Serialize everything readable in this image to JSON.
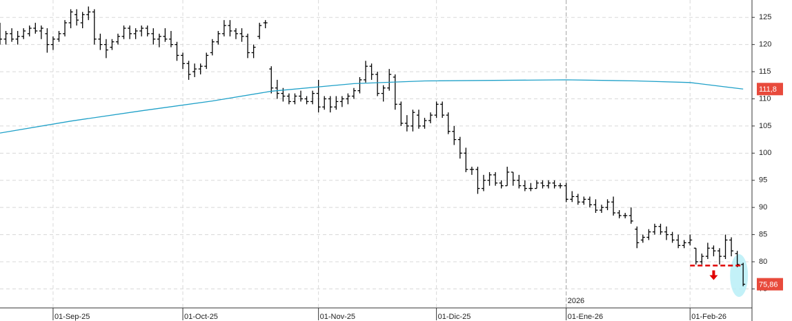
{
  "chart_data": {
    "type": "ohlc",
    "ohlc": {
      "color": "#000000",
      "close_label": "75,86",
      "open": [
        122,
        121,
        122,
        121,
        121.5,
        122,
        123,
        122.5,
        122,
        120,
        121,
        122,
        124,
        125.5,
        124,
        125.5,
        126,
        121,
        120,
        119.5,
        120.5,
        121.5,
        123,
        122,
        122.5,
        123,
        122,
        121,
        121.5,
        121,
        120,
        118,
        116.5,
        115,
        115.5,
        116,
        118.5,
        120.5,
        122,
        123.5,
        122.5,
        122,
        121.5,
        118.5,
        121.5,
        124,
        115.5,
        112,
        111,
        110.5,
        109.5,
        110.5,
        110,
        109.5,
        111,
        108.5,
        110,
        108.5,
        109.5,
        110,
        110.5,
        111.5,
        113.5,
        116,
        114.5,
        111,
        112,
        114,
        109,
        105.5,
        105,
        107,
        105,
        106,
        107,
        109,
        107,
        104,
        102.5,
        100,
        97,
        97,
        93.5,
        95,
        96,
        94.5,
        94,
        96.5,
        95,
        94,
        93.5,
        93.5,
        94.5,
        94,
        94.5,
        94,
        94,
        91.5,
        92,
        91,
        91.5,
        90.5,
        89.5,
        90,
        91,
        89,
        88.5,
        88.5,
        86,
        84,
        84.5,
        85.5,
        86.5,
        85.5,
        85,
        84,
        83,
        83.5,
        82.5,
        80,
        81,
        82.5,
        82,
        81,
        84,
        81.5,
        79.5
      ],
      "high": [
        124,
        122.5,
        123,
        122.5,
        123,
        123.5,
        124,
        123.5,
        123,
        121.5,
        122.5,
        124.5,
        126.5,
        126.5,
        126,
        127,
        126.5,
        122,
        121,
        121,
        122,
        123.5,
        123.5,
        123,
        123.5,
        123.5,
        123,
        122,
        123,
        122.5,
        120.5,
        118.5,
        117,
        116.5,
        116.5,
        118.5,
        121,
        122.5,
        124.5,
        124.5,
        123,
        123,
        122,
        120,
        124,
        124.5,
        116,
        113.5,
        112,
        111,
        111,
        111.5,
        110.5,
        111.5,
        113.5,
        110.5,
        110.5,
        110.5,
        110.5,
        111,
        112,
        114,
        117,
        116.5,
        115,
        112.5,
        115.5,
        114.5,
        109.5,
        107,
        108,
        108,
        106.5,
        107.5,
        109.5,
        109.5,
        107.5,
        105,
        103,
        101,
        97.5,
        97.5,
        96,
        96.5,
        96.5,
        95,
        97.5,
        96.5,
        96,
        95,
        94.5,
        95,
        95,
        95,
        95,
        94.5,
        94.5,
        93,
        92.5,
        92,
        92,
        91.5,
        90.5,
        91.5,
        92,
        89.5,
        89,
        90,
        86.5,
        85,
        86,
        87,
        87,
        86.5,
        85.5,
        85,
        84,
        85,
        82.5,
        81.5,
        83.5,
        83,
        82.5,
        85,
        84.5,
        82,
        79.8
      ],
      "low": [
        120,
        120,
        120.5,
        120,
        121,
        121.5,
        122,
        121,
        118.5,
        119,
        120.5,
        121.5,
        123,
        123.5,
        123,
        124.5,
        120,
        119,
        117.5,
        119,
        120,
        121,
        121,
        121,
        121.5,
        121.5,
        120,
        119.5,
        120.5,
        119.5,
        117,
        115.5,
        113.5,
        114,
        114.5,
        115.5,
        118,
        120,
        121.5,
        121.5,
        121,
        120.5,
        117.5,
        117.5,
        121,
        123,
        111,
        110,
        109.5,
        109,
        109,
        109.5,
        109,
        109,
        107.5,
        108,
        107.5,
        108,
        108.5,
        109,
        110,
        111,
        113,
        113.5,
        110.5,
        109.5,
        111.5,
        108,
        105,
        104,
        104,
        104.5,
        104.5,
        105.5,
        106.5,
        106.5,
        103.5,
        101.5,
        99,
        96.5,
        96,
        92.5,
        93,
        94,
        94,
        93.5,
        94,
        94,
        93.5,
        93,
        93,
        93.5,
        93.5,
        93.5,
        93.5,
        93.5,
        91,
        91,
        90.5,
        90.5,
        90,
        89,
        89,
        89.5,
        88.5,
        88,
        88,
        87,
        82.5,
        83.5,
        84,
        85,
        85,
        84,
        83.5,
        82.5,
        82.5,
        83,
        79.5,
        79.5,
        80.5,
        81,
        79.5,
        80.5,
        81,
        79,
        75.5
      ],
      "close": [
        121,
        122,
        121,
        121.5,
        122.5,
        123,
        122.5,
        123,
        120,
        121,
        122,
        124,
        126,
        124.5,
        125.5,
        126,
        121,
        120,
        119,
        120.5,
        121.5,
        123,
        122,
        122.5,
        123,
        122,
        121,
        121.5,
        121,
        120,
        118,
        116.5,
        114.5,
        115.5,
        116,
        118,
        120.5,
        122,
        123.5,
        122.5,
        122,
        121.5,
        118.5,
        119.5,
        123.5,
        124,
        112,
        111,
        110.5,
        109.5,
        110.5,
        110,
        109.5,
        111,
        108.5,
        110,
        108.5,
        109.5,
        110,
        110.5,
        111.5,
        113.5,
        116,
        114.5,
        111,
        112,
        114.5,
        109,
        105.5,
        105,
        107.5,
        105,
        106,
        107,
        109,
        107,
        104,
        102.5,
        100,
        97,
        97,
        93.5,
        95,
        96,
        94.5,
        94,
        96.5,
        95,
        94,
        93.5,
        93.5,
        94.5,
        94,
        94.5,
        94,
        94,
        91.5,
        92,
        91,
        91.5,
        90.5,
        89.5,
        90,
        91,
        89,
        88.5,
        88.5,
        87.5,
        83.5,
        84.5,
        85.5,
        86.5,
        85.5,
        85,
        84,
        83,
        83.5,
        84,
        80,
        81,
        82.5,
        82,
        81,
        84,
        82,
        79.5,
        75.86
      ]
    },
    "ma": {
      "color": "#1ea0c8",
      "last_label": "111,8",
      "x": [
        0,
        12,
        24,
        36,
        46,
        60,
        72,
        96,
        108,
        117,
        126
      ],
      "values": [
        103.7,
        105.9,
        107.8,
        109.6,
        111.4,
        112.8,
        113.3,
        113.5,
        113.3,
        113.0,
        111.8
      ]
    },
    "support_level": 79.3,
    "year_label": "2026",
    "xlim": [
      0,
      127.5
    ],
    "xticks": [
      {
        "value": 9,
        "label": "01-Sep-25"
      },
      {
        "value": 31,
        "label": "01-Oct-25"
      },
      {
        "value": 54,
        "label": "01-Nov-25"
      },
      {
        "value": 74,
        "label": "01-Dic-25"
      },
      {
        "value": 96,
        "label": "01-Ene-26"
      },
      {
        "value": 117,
        "label": "01-Feb-26"
      }
    ],
    "ylim": [
      71.5,
      128.2
    ],
    "yticks": [
      75,
      80,
      85,
      90,
      95,
      100,
      105,
      110,
      115,
      120,
      125
    ],
    "grid": true
  }
}
